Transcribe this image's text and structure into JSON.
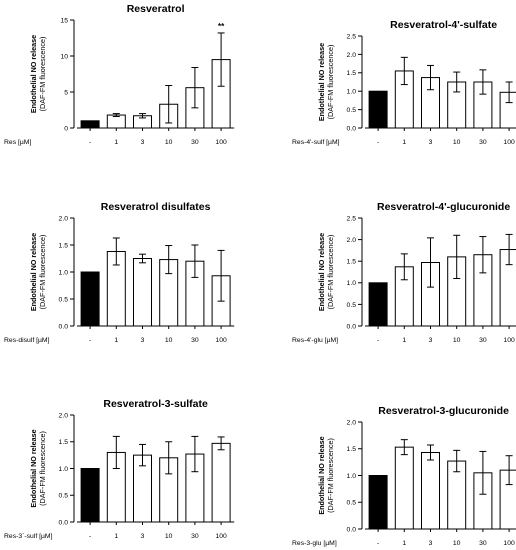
{
  "chart_data": [
    {
      "type": "bar",
      "title": "Resveratrol",
      "xlabel": "Res [µM]",
      "ylabel": "Endothelial  NO release",
      "ylabel_sub": "(DAF-FM fluorescence)",
      "categories": [
        "-",
        "1",
        "3",
        "10",
        "30",
        "100"
      ],
      "values": [
        1.0,
        1.8,
        1.7,
        3.3,
        5.6,
        9.5
      ],
      "errors": [
        0.0,
        0.2,
        0.3,
        2.6,
        2.8,
        3.7
      ],
      "ylim": [
        0,
        15
      ],
      "yticks": [
        "0",
        "5",
        "10",
        "15"
      ],
      "annotations": [
        "",
        "",
        "",
        "",
        "",
        "**"
      ]
    },
    {
      "type": "bar",
      "title": "Resveratrol-4'-sulfate",
      "xlabel": "Res-4'-sulf [µM]",
      "ylabel": "Endothelial  NO release",
      "ylabel_sub": "(DAF-FM fluorescence)",
      "categories": [
        "-",
        "1",
        "3",
        "10",
        "30",
        "100"
      ],
      "values": [
        1.0,
        1.55,
        1.37,
        1.25,
        1.25,
        0.97
      ],
      "errors": [
        0.0,
        0.37,
        0.33,
        0.27,
        0.33,
        0.28
      ],
      "ylim": [
        0,
        2.5
      ],
      "yticks": [
        "0.0",
        "0.5",
        "1.0",
        "1.5",
        "2.0",
        "2.5"
      ],
      "annotations": []
    },
    {
      "type": "bar",
      "title": "Resveratrol disulfates",
      "xlabel": "Res-disulf [µM]",
      "ylabel": "Endothelial  NO release",
      "ylabel_sub": "(DAF-FM fluorescence)",
      "categories": [
        "-",
        "1",
        "3",
        "10",
        "30",
        "100"
      ],
      "values": [
        1.0,
        1.38,
        1.25,
        1.23,
        1.2,
        0.93
      ],
      "errors": [
        0.0,
        0.25,
        0.08,
        0.26,
        0.3,
        0.47
      ],
      "ylim": [
        0,
        2.0
      ],
      "yticks": [
        "0.0",
        "0.5",
        "1.0",
        "1.5",
        "2.0"
      ],
      "annotations": []
    },
    {
      "type": "bar",
      "title": "Resveratrol-4'-glucuronide",
      "xlabel": "Res-4'-glu [µM]",
      "ylabel": "Endothelial  NO release",
      "ylabel_sub": "(DAF-FM fluorescence)",
      "categories": [
        "-",
        "1",
        "3",
        "10",
        "30",
        "100"
      ],
      "values": [
        1.0,
        1.37,
        1.47,
        1.6,
        1.65,
        1.77
      ],
      "errors": [
        0.0,
        0.3,
        0.57,
        0.5,
        0.42,
        0.35
      ],
      "ylim": [
        0,
        2.5
      ],
      "yticks": [
        "0.0",
        "0.5",
        "1.0",
        "1.5",
        "2.0",
        "2.5"
      ],
      "annotations": []
    },
    {
      "type": "bar",
      "title": "Resveratrol-3-sulfate",
      "xlabel": "Res-3`-sulf [µM]",
      "ylabel": "Endothelial  NO release",
      "ylabel_sub": "(DAF-FM fluorescence)",
      "categories": [
        "-",
        "1",
        "3",
        "10",
        "30",
        "100"
      ],
      "values": [
        1.0,
        1.3,
        1.25,
        1.2,
        1.27,
        1.47
      ],
      "errors": [
        0.0,
        0.3,
        0.2,
        0.3,
        0.33,
        0.12
      ],
      "ylim": [
        0,
        2.0
      ],
      "yticks": [
        "0.0",
        "0.5",
        "1.0",
        "1.5",
        "2.0"
      ],
      "annotations": []
    },
    {
      "type": "bar",
      "title": "Resveratrol-3-glucuronide",
      "xlabel": "Res-3-glu [µM]",
      "ylabel": "Endothelial  NO release",
      "ylabel_sub": "(DAF-FM fluorescence)",
      "categories": [
        "-",
        "1",
        "3",
        "10",
        "30",
        "100"
      ],
      "values": [
        1.0,
        1.53,
        1.43,
        1.27,
        1.05,
        1.1
      ],
      "errors": [
        0.0,
        0.14,
        0.14,
        0.2,
        0.4,
        0.27
      ],
      "ylim": [
        0,
        2.0
      ],
      "yticks": [
        "0.0",
        "0.5",
        "1.0",
        "1.5",
        "2.0"
      ],
      "annotations": []
    }
  ]
}
